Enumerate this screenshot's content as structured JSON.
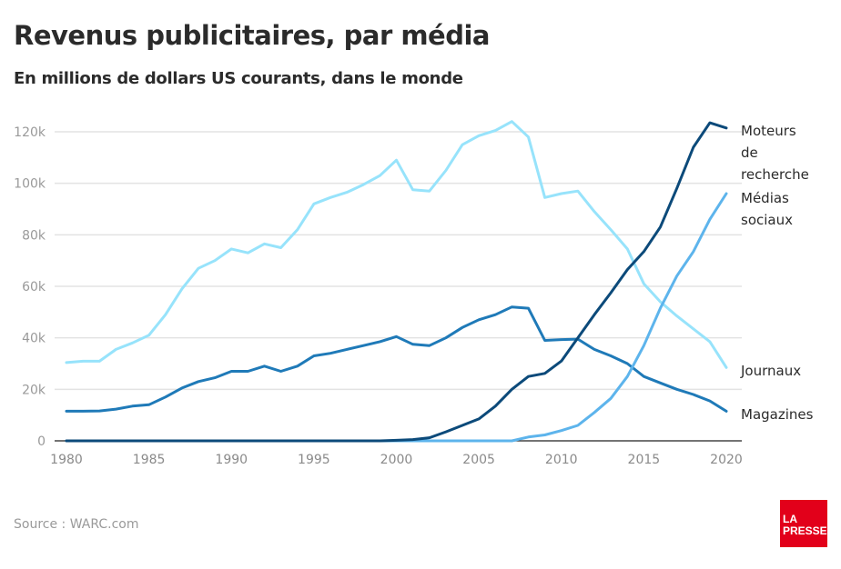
{
  "title": "Revenus publicitaires, par média",
  "subtitle": "En millions de dollars US courants, dans le monde",
  "source": "Source : WARC.com",
  "logo": {
    "line1": "LA",
    "line2": "PRESSE",
    "color": "#e2001a"
  },
  "chart_data": {
    "type": "line",
    "title": "Revenus publicitaires, par média",
    "xlim": [
      1980,
      2020
    ],
    "ylim": [
      0,
      120000
    ],
    "grid": true,
    "legend": "right, direct labels at line ends",
    "x_ticks": [
      "1980",
      "1985",
      "1990",
      "1995",
      "2000",
      "2005",
      "2010",
      "2015",
      "2020"
    ],
    "y_ticks": [
      {
        "value": 0,
        "label": "0"
      },
      {
        "value": 20000,
        "label": "20k"
      },
      {
        "value": 40000,
        "label": "40k"
      },
      {
        "value": 60000,
        "label": "60k"
      },
      {
        "value": 80000,
        "label": "80k"
      },
      {
        "value": 100000,
        "label": "100k"
      },
      {
        "value": 120000,
        "label": "120k"
      }
    ],
    "x": [
      1980,
      1981,
      1982,
      1983,
      1984,
      1985,
      1986,
      1987,
      1988,
      1989,
      1990,
      1991,
      1992,
      1993,
      1994,
      1995,
      1996,
      1997,
      1998,
      1999,
      2000,
      2001,
      2002,
      2003,
      2004,
      2005,
      2006,
      2007,
      2008,
      2009,
      2010,
      2011,
      2012,
      2013,
      2014,
      2015,
      2016,
      2017,
      2018,
      2019,
      2020
    ],
    "series": [
      {
        "name": "Journaux",
        "label_lines": [
          "Journaux"
        ],
        "color": "#97e3fb",
        "values": [
          30400,
          30900,
          30900,
          35500,
          38000,
          41000,
          49000,
          59000,
          67000,
          70000,
          74500,
          73000,
          76500,
          75000,
          82000,
          92000,
          94500,
          96500,
          99500,
          103000,
          109000,
          97500,
          97000,
          105000,
          115000,
          118500,
          120500,
          124000,
          118000,
          94500,
          96000,
          97000,
          89000,
          82000,
          74500,
          61000,
          54000,
          48500,
          43500,
          38500,
          28500
        ]
      },
      {
        "name": "Magazines",
        "label_lines": [
          "Magazines"
        ],
        "color": "#1f7ab8",
        "values": [
          11500,
          11500,
          11600,
          12300,
          13500,
          14000,
          17000,
          20500,
          23000,
          24500,
          27000,
          27000,
          29000,
          27000,
          29000,
          33000,
          34000,
          35500,
          37000,
          38500,
          40500,
          37500,
          37000,
          40000,
          44000,
          47000,
          49000,
          52000,
          51500,
          39000,
          39300,
          39500,
          35500,
          33000,
          30000,
          25000,
          22500,
          20000,
          18000,
          15500,
          11500
        ]
      },
      {
        "name": "Moteurs de recherche",
        "label_lines": [
          "Moteurs",
          "de",
          "recherche"
        ],
        "color": "#0c4a7a",
        "values": [
          0,
          0,
          0,
          0,
          0,
          0,
          0,
          0,
          0,
          0,
          0,
          0,
          0,
          0,
          0,
          0,
          0,
          0,
          0,
          0,
          200,
          500,
          1200,
          3500,
          6000,
          8500,
          13500,
          20000,
          25000,
          26200,
          31000,
          40000,
          49000,
          57500,
          66500,
          73500,
          83000,
          98000,
          114000,
          123500,
          121500
        ]
      },
      {
        "name": "Médias sociaux",
        "label_lines": [
          "Médias",
          "sociaux"
        ],
        "color": "#5db4ec",
        "values": [
          0,
          0,
          0,
          0,
          0,
          0,
          0,
          0,
          0,
          0,
          0,
          0,
          0,
          0,
          0,
          0,
          0,
          0,
          0,
          0,
          0,
          0,
          0,
          0,
          0,
          0,
          0,
          0,
          1500,
          2300,
          4000,
          6000,
          11000,
          16500,
          25000,
          37000,
          51500,
          64000,
          73500,
          86000,
          96000
        ]
      }
    ]
  }
}
